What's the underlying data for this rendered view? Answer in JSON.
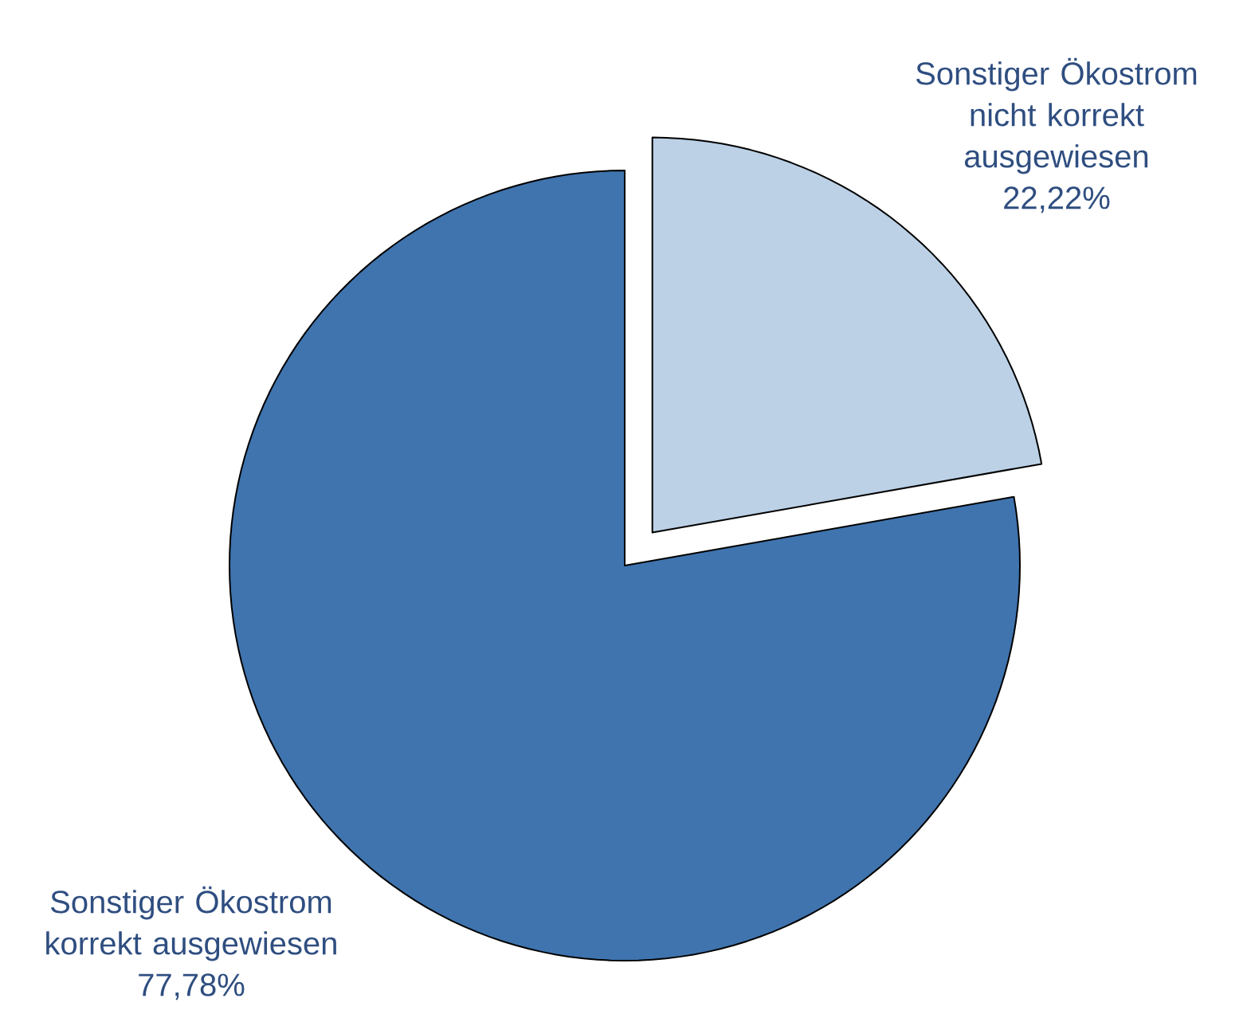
{
  "chart_data": {
    "type": "pie",
    "categories": [
      "Sonstiger Ökostrom nicht korrekt ausgewiesen",
      "Sonstiger Ökostrom korrekt ausgewiesen"
    ],
    "values": [
      22.22,
      77.78
    ],
    "value_labels": [
      "22,22%",
      "77,78%"
    ],
    "colors": [
      "#bcd1e6",
      "#3f74ae"
    ]
  }
}
